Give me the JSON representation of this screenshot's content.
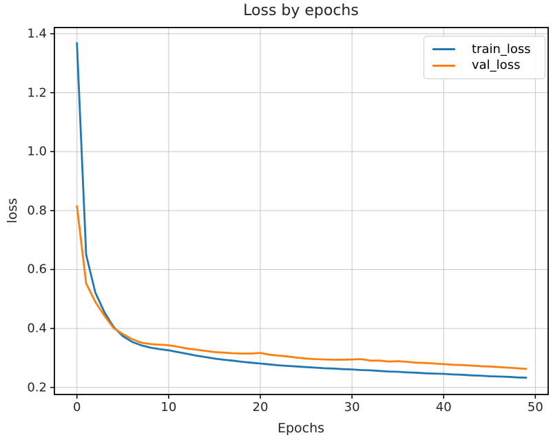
{
  "chart_data": {
    "type": "line",
    "title": "Loss by epochs",
    "xlabel": "Epochs",
    "ylabel": "loss",
    "grid": true,
    "legend_position": "upper right",
    "xlim": [
      -2.46,
      51.4
    ],
    "ylim": [
      0.176,
      1.421
    ],
    "x_ticks": [
      0,
      10,
      20,
      30,
      40,
      50
    ],
    "y_ticks": [
      0.2,
      0.4,
      0.6,
      0.8,
      1.0,
      1.2,
      1.4
    ],
    "x_tick_labels": [
      "0",
      "10",
      "20",
      "30",
      "40",
      "50"
    ],
    "y_tick_labels": [
      "0.2",
      "0.4",
      "0.6",
      "0.8",
      "1.0",
      "1.2",
      "1.4"
    ],
    "x": [
      0,
      1,
      2,
      3,
      4,
      5,
      6,
      7,
      8,
      9,
      10,
      11,
      12,
      13,
      14,
      15,
      16,
      17,
      18,
      19,
      20,
      21,
      22,
      23,
      24,
      25,
      26,
      27,
      28,
      29,
      30,
      31,
      32,
      33,
      34,
      35,
      36,
      37,
      38,
      39,
      40,
      41,
      42,
      43,
      44,
      45,
      46,
      47,
      48,
      49
    ],
    "series": [
      {
        "name": "train_loss",
        "color": "#1f77b4",
        "values": [
          1.368,
          0.65,
          0.522,
          0.455,
          0.405,
          0.374,
          0.355,
          0.343,
          0.335,
          0.33,
          0.326,
          0.32,
          0.314,
          0.308,
          0.303,
          0.298,
          0.294,
          0.291,
          0.287,
          0.284,
          0.281,
          0.278,
          0.275,
          0.273,
          0.271,
          0.269,
          0.267,
          0.265,
          0.264,
          0.262,
          0.261,
          0.259,
          0.258,
          0.256,
          0.254,
          0.253,
          0.251,
          0.25,
          0.248,
          0.247,
          0.246,
          0.244,
          0.243,
          0.241,
          0.24,
          0.238,
          0.237,
          0.236,
          0.234,
          0.233
        ]
      },
      {
        "name": "val_loss",
        "color": "#ff7f0e",
        "values": [
          0.815,
          0.553,
          0.49,
          0.443,
          0.401,
          0.381,
          0.364,
          0.352,
          0.347,
          0.345,
          0.343,
          0.338,
          0.332,
          0.328,
          0.324,
          0.32,
          0.318,
          0.316,
          0.315,
          0.315,
          0.317,
          0.311,
          0.308,
          0.305,
          0.301,
          0.298,
          0.296,
          0.295,
          0.294,
          0.294,
          0.295,
          0.296,
          0.291,
          0.291,
          0.288,
          0.289,
          0.287,
          0.284,
          0.283,
          0.281,
          0.279,
          0.277,
          0.276,
          0.274,
          0.272,
          0.271,
          0.269,
          0.267,
          0.265,
          0.263
        ]
      }
    ],
    "colors": {
      "grid": "#c6c6c6",
      "spine": "#000000",
      "background": "#ffffff",
      "text": "#262626"
    }
  }
}
